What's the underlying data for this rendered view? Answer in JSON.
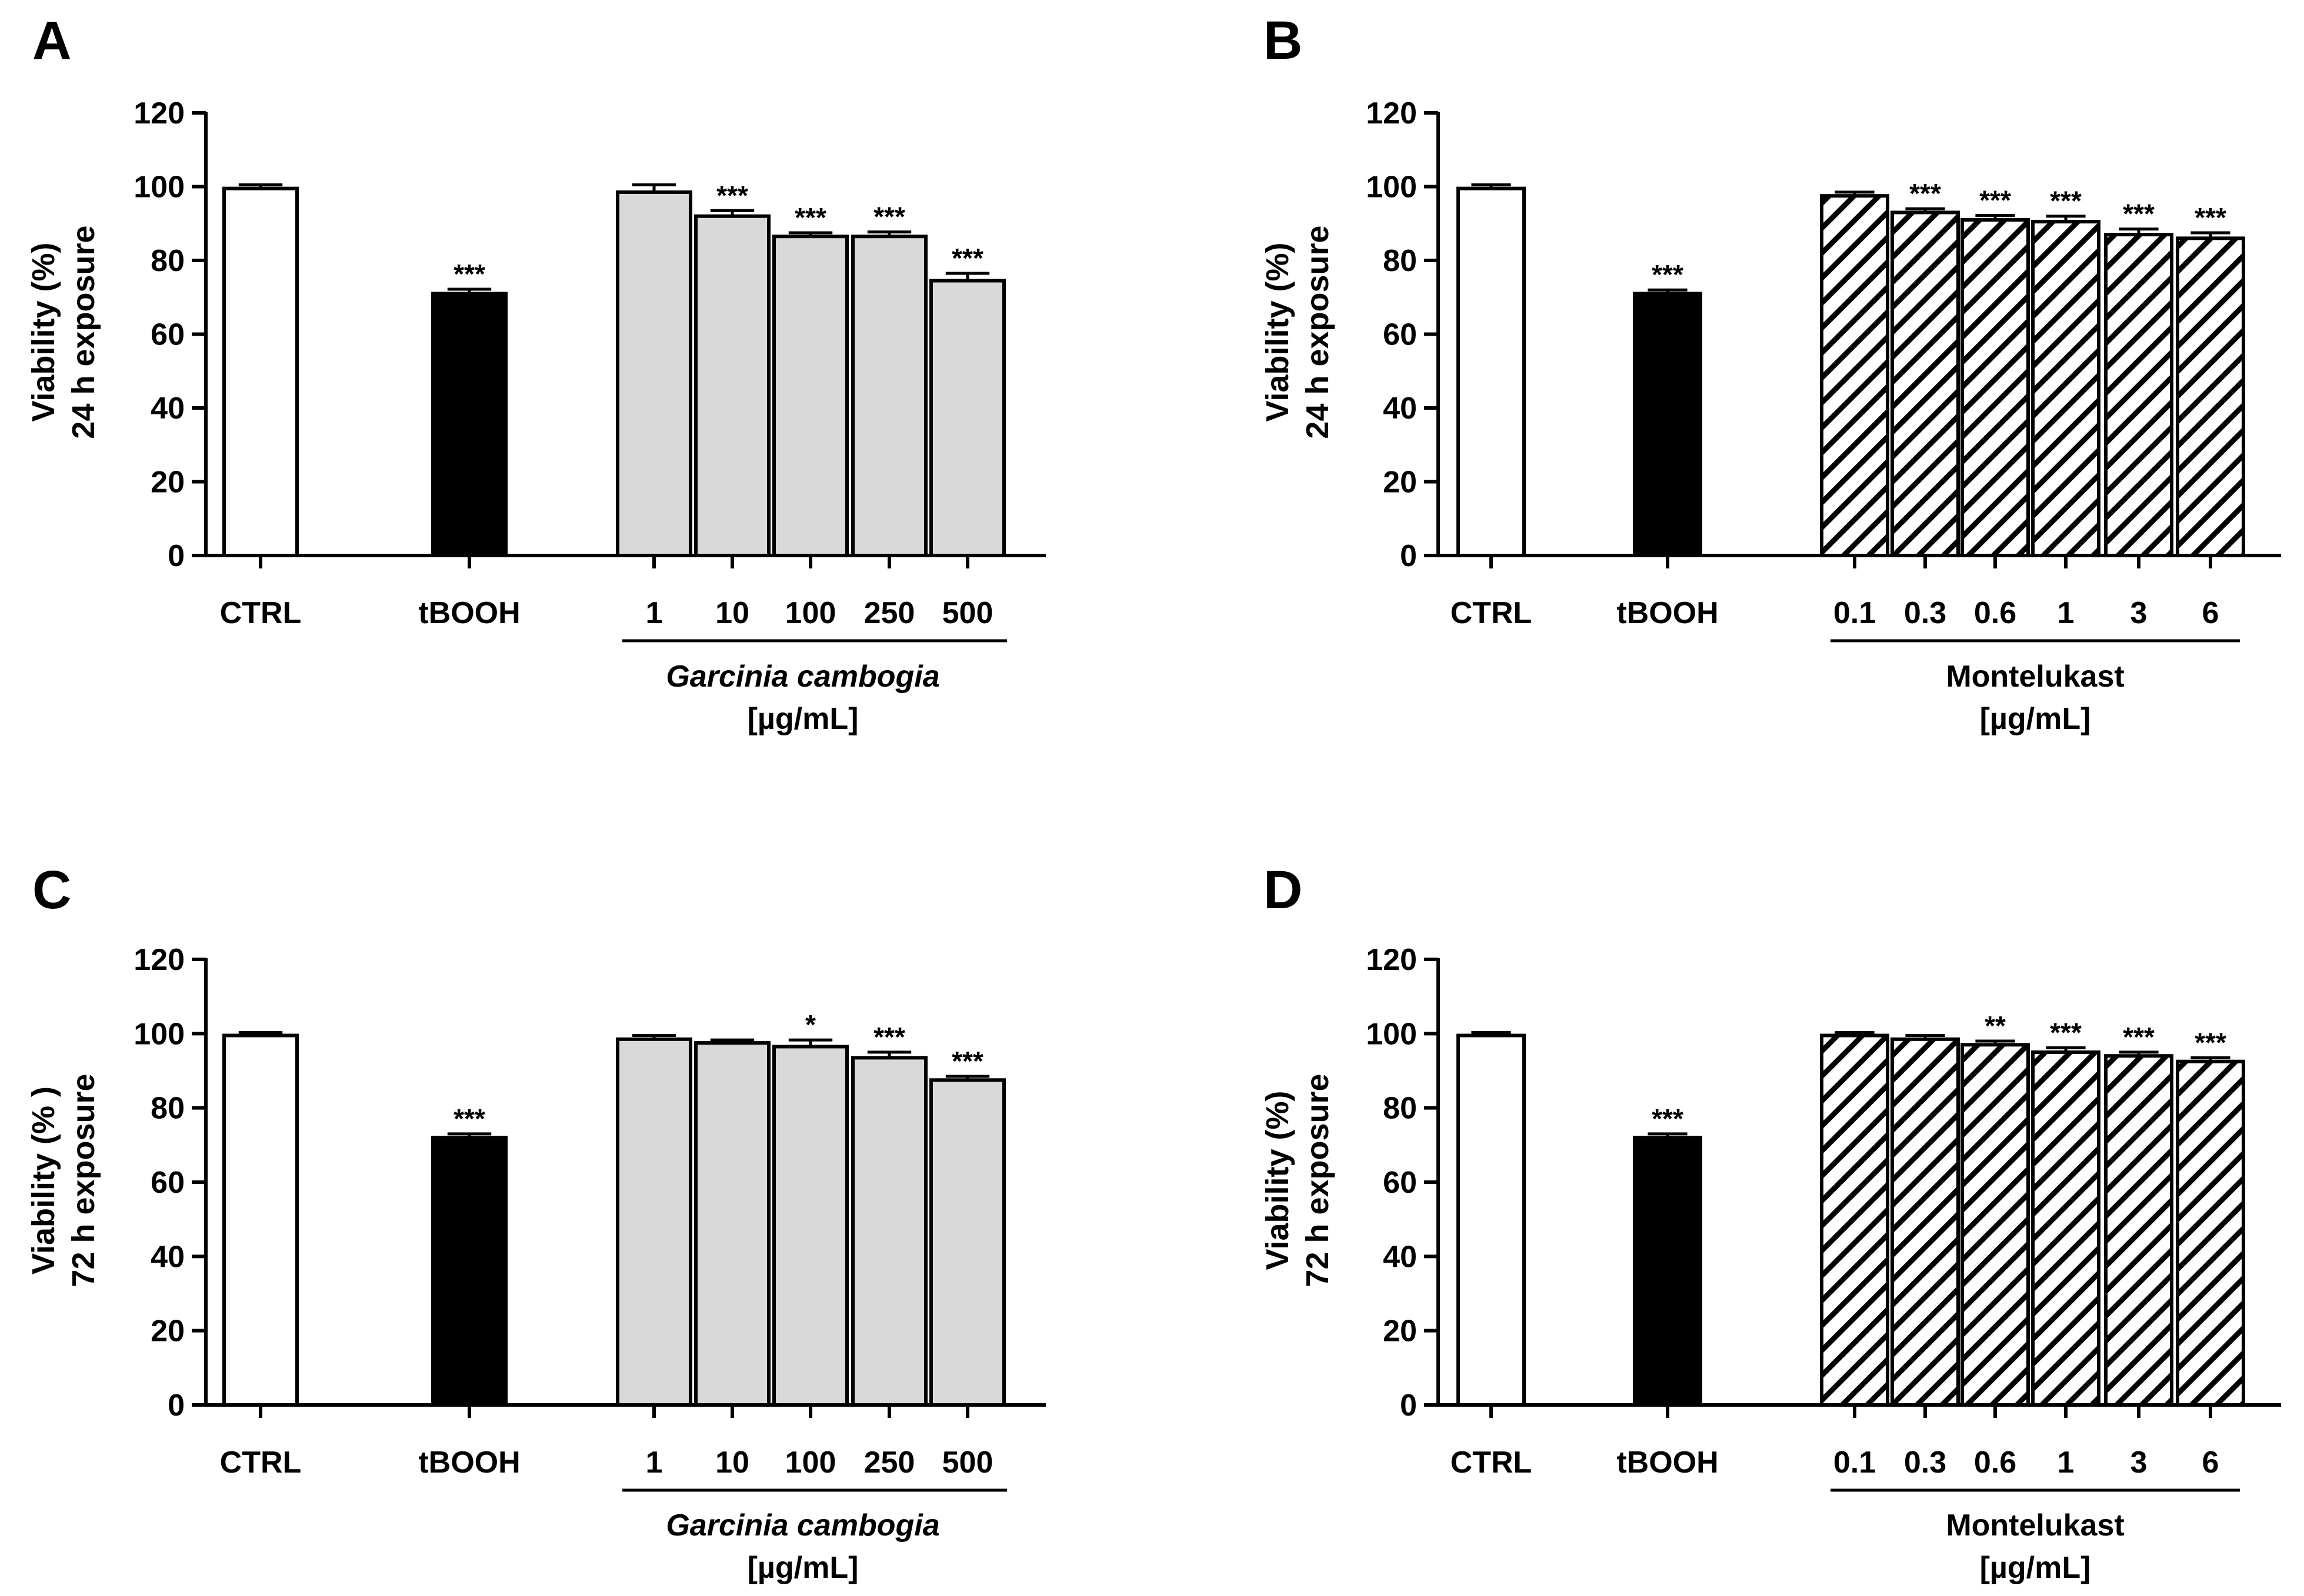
{
  "chart_data": [
    {
      "panel": "A",
      "type": "bar",
      "ylabel": [
        "Viability (%)",
        "24 h exposure"
      ],
      "ylim": [
        0,
        120
      ],
      "yticks": [
        0,
        20,
        40,
        60,
        80,
        100,
        120
      ],
      "group_label": [
        "Garcinia cambogia",
        "[µg/mL]"
      ],
      "group_italic": true,
      "series": [
        {
          "name": "CTRL",
          "label": "CTRL",
          "value": 99.5,
          "error": 1.0,
          "style": "white",
          "sig": ""
        },
        {
          "name": "tBOOH",
          "label": "tBOOH",
          "value": 71,
          "error": 1.2,
          "style": "black",
          "sig": "***"
        },
        {
          "name": "Garcinia cambogia 1",
          "label": "1",
          "value": 98.5,
          "error": 2.0,
          "style": "gray",
          "sig": ""
        },
        {
          "name": "Garcinia cambogia 10",
          "label": "10",
          "value": 92,
          "error": 1.5,
          "style": "gray",
          "sig": "***"
        },
        {
          "name": "Garcinia cambogia 100",
          "label": "100",
          "value": 86.5,
          "error": 1.0,
          "style": "gray",
          "sig": "***"
        },
        {
          "name": "Garcinia cambogia 250",
          "label": "250",
          "value": 86.5,
          "error": 1.2,
          "style": "gray",
          "sig": "***"
        },
        {
          "name": "Garcinia cambogia 500",
          "label": "500",
          "value": 74.5,
          "error": 2.0,
          "style": "gray",
          "sig": "***"
        }
      ]
    },
    {
      "panel": "B",
      "type": "bar",
      "ylabel": [
        "Viability (%)",
        "24 h exposure"
      ],
      "ylim": [
        0,
        120
      ],
      "yticks": [
        0,
        20,
        40,
        60,
        80,
        100,
        120
      ],
      "group_label": [
        "Montelukast",
        "[µg/mL]"
      ],
      "group_italic": false,
      "series": [
        {
          "name": "CTRL",
          "label": "CTRL",
          "value": 99.5,
          "error": 1.0,
          "style": "white",
          "sig": ""
        },
        {
          "name": "tBOOH",
          "label": "tBOOH",
          "value": 71,
          "error": 1.0,
          "style": "black",
          "sig": "***"
        },
        {
          "name": "Montelukast 0.1",
          "label": "0.1",
          "value": 97.5,
          "error": 1.0,
          "style": "hatch",
          "sig": ""
        },
        {
          "name": "Montelukast 0.3",
          "label": "0.3",
          "value": 93,
          "error": 1.0,
          "style": "hatch",
          "sig": "***"
        },
        {
          "name": "Montelukast 0.6",
          "label": "0.6",
          "value": 91,
          "error": 1.2,
          "style": "hatch",
          "sig": "***"
        },
        {
          "name": "Montelukast 1",
          "label": "1",
          "value": 90.5,
          "error": 1.5,
          "style": "hatch",
          "sig": "***"
        },
        {
          "name": "Montelukast 3",
          "label": "3",
          "value": 87,
          "error": 1.5,
          "style": "hatch",
          "sig": "***"
        },
        {
          "name": "Montelukast 6",
          "label": "6",
          "value": 86,
          "error": 1.5,
          "style": "hatch",
          "sig": "***"
        }
      ]
    },
    {
      "panel": "C",
      "type": "bar",
      "ylabel": [
        "Viability (% )",
        "72 h exposure"
      ],
      "ylim": [
        0,
        120
      ],
      "yticks": [
        0,
        20,
        40,
        60,
        80,
        100,
        120
      ],
      "group_label": [
        "Garcinia cambogia",
        "[µg/mL]"
      ],
      "group_italic": true,
      "series": [
        {
          "name": "CTRL",
          "label": "CTRL",
          "value": 99.5,
          "error": 0.8,
          "style": "white",
          "sig": ""
        },
        {
          "name": "tBOOH",
          "label": "tBOOH",
          "value": 72,
          "error": 1.0,
          "style": "black",
          "sig": "***"
        },
        {
          "name": "Garcinia cambogia 1",
          "label": "1",
          "value": 98.5,
          "error": 1.0,
          "style": "gray",
          "sig": ""
        },
        {
          "name": "Garcinia cambogia 10",
          "label": "10",
          "value": 97.5,
          "error": 0.8,
          "style": "gray",
          "sig": ""
        },
        {
          "name": "Garcinia cambogia 100",
          "label": "100",
          "value": 96.5,
          "error": 1.8,
          "style": "gray",
          "sig": "*"
        },
        {
          "name": "Garcinia cambogia 250",
          "label": "250",
          "value": 93.5,
          "error": 1.5,
          "style": "gray",
          "sig": "***"
        },
        {
          "name": "Garcinia cambogia 500",
          "label": "500",
          "value": 87.5,
          "error": 1.0,
          "style": "gray",
          "sig": "***"
        }
      ]
    },
    {
      "panel": "D",
      "type": "bar",
      "ylabel": [
        "Viability (%)",
        "72 h exposure"
      ],
      "ylim": [
        0,
        120
      ],
      "yticks": [
        0,
        20,
        40,
        60,
        80,
        100,
        120
      ],
      "group_label": [
        "Montelukast",
        "[µg/mL]"
      ],
      "group_italic": false,
      "series": [
        {
          "name": "CTRL",
          "label": "CTRL",
          "value": 99.5,
          "error": 0.8,
          "style": "white",
          "sig": ""
        },
        {
          "name": "tBOOH",
          "label": "tBOOH",
          "value": 72,
          "error": 1.0,
          "style": "black",
          "sig": "***"
        },
        {
          "name": "Montelukast 0.1",
          "label": "0.1",
          "value": 99.5,
          "error": 0.8,
          "style": "hatch",
          "sig": ""
        },
        {
          "name": "Montelukast 0.3",
          "label": "0.3",
          "value": 98.5,
          "error": 1.0,
          "style": "hatch",
          "sig": ""
        },
        {
          "name": "Montelukast 0.6",
          "label": "0.6",
          "value": 97,
          "error": 1.0,
          "style": "hatch",
          "sig": "**"
        },
        {
          "name": "Montelukast 1",
          "label": "1",
          "value": 95,
          "error": 1.2,
          "style": "hatch",
          "sig": "***"
        },
        {
          "name": "Montelukast 3",
          "label": "3",
          "value": 94,
          "error": 1.0,
          "style": "hatch",
          "sig": "***"
        },
        {
          "name": "Montelukast 6",
          "label": "6",
          "value": 92.5,
          "error": 1.0,
          "style": "hatch",
          "sig": "***"
        }
      ]
    }
  ],
  "colors": {
    "bar_white": "#ffffff",
    "bar_black": "#000000",
    "bar_gray": "#d9d9d9",
    "stroke": "#000000"
  }
}
